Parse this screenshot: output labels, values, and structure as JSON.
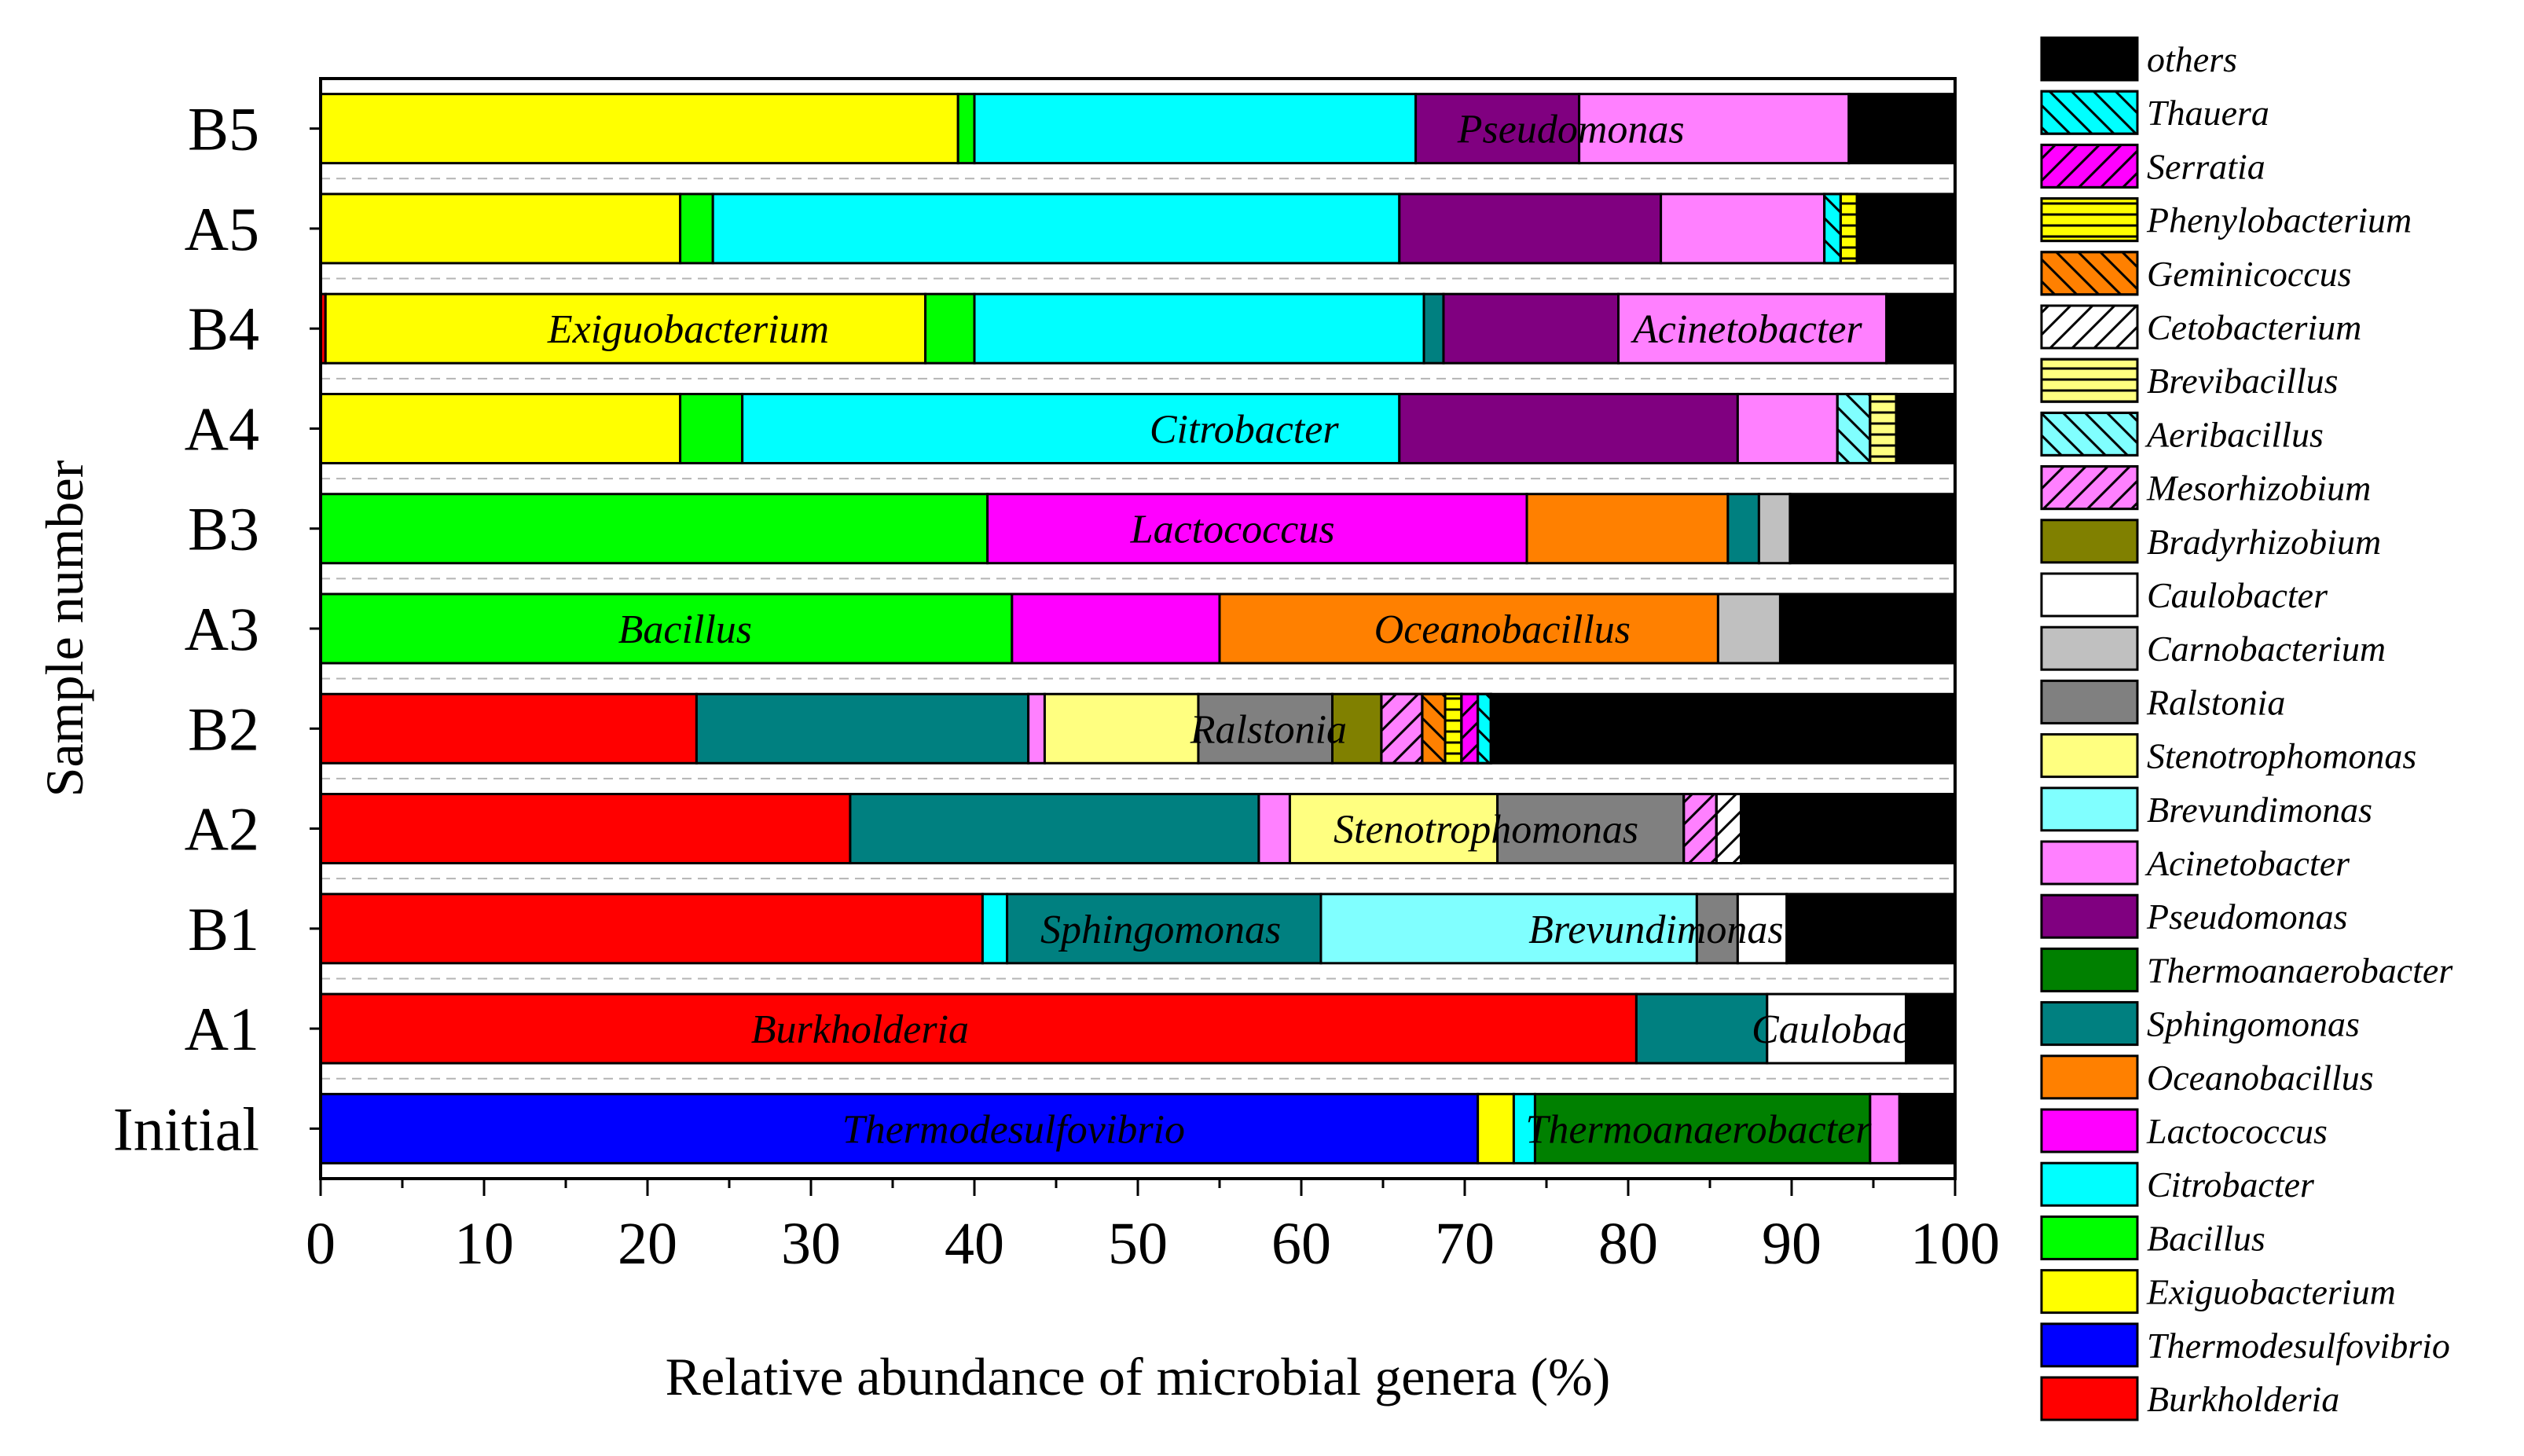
{
  "chart_data": {
    "type": "bar",
    "orientation": "horizontal",
    "stacked": true,
    "xlabel": "Relative abundance of microbial genera (%)",
    "ylabel": "Sample number",
    "xlim": [
      0,
      100
    ],
    "xticks": [
      "0",
      "10",
      "20",
      "30",
      "40",
      "50",
      "60",
      "70",
      "80",
      "90",
      "100"
    ],
    "categories": [
      "B5",
      "A5",
      "B4",
      "A4",
      "B3",
      "A3",
      "B2",
      "A2",
      "B1",
      "A1",
      "Initial"
    ],
    "legend_position": "right",
    "legend": [
      {
        "name": "others",
        "color": "#000000",
        "pattern": "solid"
      },
      {
        "name": "Thauera",
        "color": "#00FFFF",
        "pattern": "back"
      },
      {
        "name": "Serratia",
        "color": "#FF00FF",
        "pattern": "fwd"
      },
      {
        "name": "Phenylobacterium",
        "color": "#FFFF00",
        "pattern": "horiz"
      },
      {
        "name": "Geminicoccus",
        "color": "#FF8000",
        "pattern": "back"
      },
      {
        "name": "Cetobacterium",
        "color": "#FFFFFF",
        "pattern": "fwd"
      },
      {
        "name": "Brevibacillus",
        "color": "#FFFF80",
        "pattern": "horiz"
      },
      {
        "name": "Aeribacillus",
        "color": "#80FFFF",
        "pattern": "back"
      },
      {
        "name": "Mesorhizobium",
        "color": "#FF80FF",
        "pattern": "fwd"
      },
      {
        "name": "Bradyrhizobium",
        "color": "#808000",
        "pattern": "solid"
      },
      {
        "name": "Caulobacter",
        "color": "#FFFFFF",
        "pattern": "solid"
      },
      {
        "name": "Carnobacterium",
        "color": "#C0C0C0",
        "pattern": "solid"
      },
      {
        "name": "Ralstonia",
        "color": "#808080",
        "pattern": "solid"
      },
      {
        "name": "Stenotrophomonas",
        "color": "#FFFF80",
        "pattern": "solid"
      },
      {
        "name": "Brevundimonas",
        "color": "#80FFFF",
        "pattern": "solid"
      },
      {
        "name": "Acinetobacter",
        "color": "#FF80FF",
        "pattern": "solid"
      },
      {
        "name": "Pseudomonas",
        "color": "#800080",
        "pattern": "solid"
      },
      {
        "name": "Thermoanaerobacter",
        "color": "#008000",
        "pattern": "solid"
      },
      {
        "name": "Sphingomonas",
        "color": "#008080",
        "pattern": "solid"
      },
      {
        "name": "Oceanobacillus",
        "color": "#FF8000",
        "pattern": "solid"
      },
      {
        "name": "Lactococcus",
        "color": "#FF00FF",
        "pattern": "solid"
      },
      {
        "name": "Citrobacter",
        "color": "#00FFFF",
        "pattern": "solid"
      },
      {
        "name": "Bacillus",
        "color": "#00FF00",
        "pattern": "solid"
      },
      {
        "name": "Exiguobacterium",
        "color": "#FFFF00",
        "pattern": "solid"
      },
      {
        "name": "Thermodesulfovibrio",
        "color": "#0000FF",
        "pattern": "solid"
      },
      {
        "name": "Burkholderia",
        "color": "#FF0000",
        "pattern": "solid"
      }
    ],
    "bars": [
      {
        "sample": "B5",
        "segments": [
          {
            "genus": "Exiguobacterium",
            "value": 39.0
          },
          {
            "genus": "Bacillus",
            "value": 1.0
          },
          {
            "genus": "Citrobacter",
            "value": 27.0
          },
          {
            "genus": "Pseudomonas",
            "value": 10.0
          },
          {
            "genus": "Acinetobacter",
            "value": 16.5
          },
          {
            "genus": "others",
            "value": 6.5
          }
        ]
      },
      {
        "sample": "A5",
        "segments": [
          {
            "genus": "Exiguobacterium",
            "value": 22.0
          },
          {
            "genus": "Bacillus",
            "value": 2.0
          },
          {
            "genus": "Citrobacter",
            "value": 42.0
          },
          {
            "genus": "Pseudomonas",
            "value": 16.0
          },
          {
            "genus": "Acinetobacter",
            "value": 10.0
          },
          {
            "genus": "Thauera",
            "value": 1.0
          },
          {
            "genus": "Phenylobacterium",
            "value": 1.0
          },
          {
            "genus": "others",
            "value": 6.0
          }
        ]
      },
      {
        "sample": "B4",
        "segments": [
          {
            "genus": "Burkholderia",
            "value": 0.3
          },
          {
            "genus": "Exiguobacterium",
            "value": 36.7
          },
          {
            "genus": "Bacillus",
            "value": 3.0
          },
          {
            "genus": "Citrobacter",
            "value": 27.5
          },
          {
            "genus": "Sphingomonas",
            "value": 1.2
          },
          {
            "genus": "Pseudomonas",
            "value": 10.7
          },
          {
            "genus": "Acinetobacter",
            "value": 16.4
          },
          {
            "genus": "others",
            "value": 4.2
          }
        ]
      },
      {
        "sample": "A4",
        "segments": [
          {
            "genus": "Exiguobacterium",
            "value": 22.0
          },
          {
            "genus": "Bacillus",
            "value": 3.8
          },
          {
            "genus": "Citrobacter",
            "value": 40.2
          },
          {
            "genus": "Pseudomonas",
            "value": 20.7
          },
          {
            "genus": "Acinetobacter",
            "value": 6.1
          },
          {
            "genus": "Aeribacillus",
            "value": 2.0
          },
          {
            "genus": "Brevibacillus",
            "value": 1.6
          },
          {
            "genus": "others",
            "value": 3.6
          }
        ]
      },
      {
        "sample": "B3",
        "segments": [
          {
            "genus": "Bacillus",
            "value": 40.8
          },
          {
            "genus": "Lactococcus",
            "value": 33.0
          },
          {
            "genus": "Oceanobacillus",
            "value": 12.3
          },
          {
            "genus": "Sphingomonas",
            "value": 1.9
          },
          {
            "genus": "Carnobacterium",
            "value": 1.9
          },
          {
            "genus": "others",
            "value": 10.1
          }
        ]
      },
      {
        "sample": "A3",
        "segments": [
          {
            "genus": "Bacillus",
            "value": 42.3
          },
          {
            "genus": "Lactococcus",
            "value": 12.7
          },
          {
            "genus": "Oceanobacillus",
            "value": 30.5
          },
          {
            "genus": "Carnobacterium",
            "value": 3.8
          },
          {
            "genus": "others",
            "value": 10.7
          }
        ]
      },
      {
        "sample": "B2",
        "segments": [
          {
            "genus": "Burkholderia",
            "value": 23.0
          },
          {
            "genus": "Sphingomonas",
            "value": 20.3
          },
          {
            "genus": "Acinetobacter",
            "value": 1.0
          },
          {
            "genus": "Stenotrophomonas",
            "value": 9.4
          },
          {
            "genus": "Ralstonia",
            "value": 8.2
          },
          {
            "genus": "Bradyrhizobium",
            "value": 3.0
          },
          {
            "genus": "Mesorhizobium",
            "value": 2.5
          },
          {
            "genus": "Geminicoccus",
            "value": 1.4
          },
          {
            "genus": "Phenylobacterium",
            "value": 1.0
          },
          {
            "genus": "Serratia",
            "value": 1.0
          },
          {
            "genus": "Thauera",
            "value": 0.8
          },
          {
            "genus": "others",
            "value": 28.4
          }
        ]
      },
      {
        "sample": "A2",
        "segments": [
          {
            "genus": "Burkholderia",
            "value": 32.4
          },
          {
            "genus": "Sphingomonas",
            "value": 25.0
          },
          {
            "genus": "Acinetobacter",
            "value": 1.9
          },
          {
            "genus": "Stenotrophomonas",
            "value": 12.7
          },
          {
            "genus": "Ralstonia",
            "value": 11.4
          },
          {
            "genus": "Mesorhizobium",
            "value": 2.0
          },
          {
            "genus": "Cetobacterium",
            "value": 1.5
          },
          {
            "genus": "others",
            "value": 13.1
          }
        ]
      },
      {
        "sample": "B1",
        "segments": [
          {
            "genus": "Burkholderia",
            "value": 40.5
          },
          {
            "genus": "Citrobacter",
            "value": 1.5
          },
          {
            "genus": "Sphingomonas",
            "value": 19.2
          },
          {
            "genus": "Brevundimonas",
            "value": 23.0
          },
          {
            "genus": "Ralstonia",
            "value": 2.5
          },
          {
            "genus": "Caulobacter",
            "value": 3.0
          },
          {
            "genus": "others",
            "value": 10.3
          }
        ]
      },
      {
        "sample": "A1",
        "segments": [
          {
            "genus": "Burkholderia",
            "value": 80.5
          },
          {
            "genus": "Sphingomonas",
            "value": 8.0
          },
          {
            "genus": "Caulobacter",
            "value": 8.5
          },
          {
            "genus": "others",
            "value": 3.0
          }
        ]
      },
      {
        "sample": "Initial",
        "segments": [
          {
            "genus": "Thermodesulfovibrio",
            "value": 70.8
          },
          {
            "genus": "Exiguobacterium",
            "value": 2.2
          },
          {
            "genus": "Citrobacter",
            "value": 1.3
          },
          {
            "genus": "Thermoanaerobacter",
            "value": 20.5
          },
          {
            "genus": "Acinetobacter",
            "value": 1.8
          },
          {
            "genus": "others",
            "value": 3.4
          }
        ]
      }
    ],
    "annotations": [
      {
        "text": "Pseudomonas",
        "sample": "B5",
        "x": 76.5
      },
      {
        "text": "Exiguobacterium",
        "sample": "B4",
        "x": 22.5
      },
      {
        "text": "Acinetobacter",
        "sample": "B4",
        "x": 87.3
      },
      {
        "text": "Citrobacter",
        "sample": "A4",
        "x": 56.5
      },
      {
        "text": "Lactococcus",
        "sample": "B3",
        "x": 55.8
      },
      {
        "text": "Bacillus",
        "sample": "A3",
        "x": 22.3
      },
      {
        "text": "Oceanobacillus",
        "sample": "A3",
        "x": 72.3
      },
      {
        "text": "Ralstonia",
        "sample": "B2",
        "x": 58.0
      },
      {
        "text": "Stenotrophomonas",
        "sample": "A2",
        "x": 71.3
      },
      {
        "text": "Sphingomonas",
        "sample": "B1",
        "x": 51.4
      },
      {
        "text": "Brevundimonas",
        "sample": "B1",
        "x": 81.7
      },
      {
        "text": "Burkholderia",
        "sample": "A1",
        "x": 33.0
      },
      {
        "text": "Caulobacter",
        "sample": "A1",
        "x": 93.8
      },
      {
        "text": "Thermodesulfovibrio",
        "sample": "Initial",
        "x": 42.4
      },
      {
        "text": "Thermoanaerobacter",
        "sample": "Initial",
        "x": 84.3
      }
    ]
  }
}
